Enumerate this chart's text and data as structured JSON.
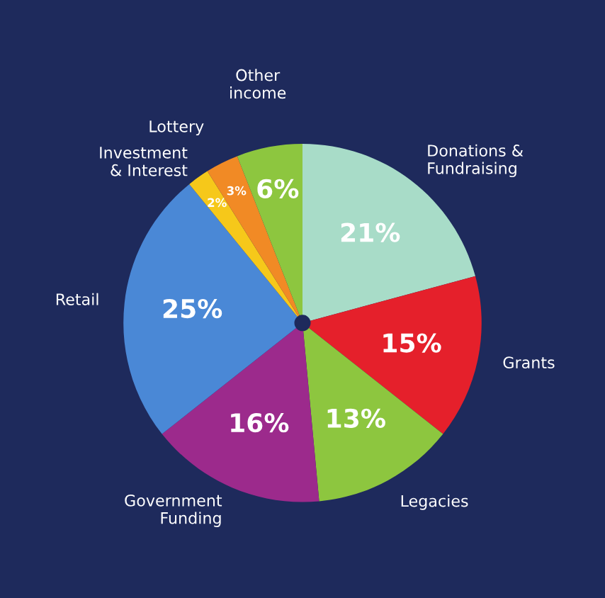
{
  "chart_data": {
    "type": "pie",
    "categories": [
      "Donations &\nFundraising",
      "Grants",
      "Legacies",
      "Government\nFunding",
      "Retail",
      "Investment\n& Interest",
      "Lottery",
      "Other\nincome"
    ],
    "values": [
      21,
      15,
      13,
      16,
      25,
      2,
      3,
      6
    ],
    "value_labels": [
      "21%",
      "15%",
      "13%",
      "16%",
      "25%",
      "2%",
      "3%",
      "6%"
    ],
    "colors": [
      "#a8dcc8",
      "#e5202b",
      "#8dc63f",
      "#9c2a8c",
      "#4a88d6",
      "#f6c81a",
      "#f18a25",
      "#8dc63f"
    ],
    "legend": false
  }
}
